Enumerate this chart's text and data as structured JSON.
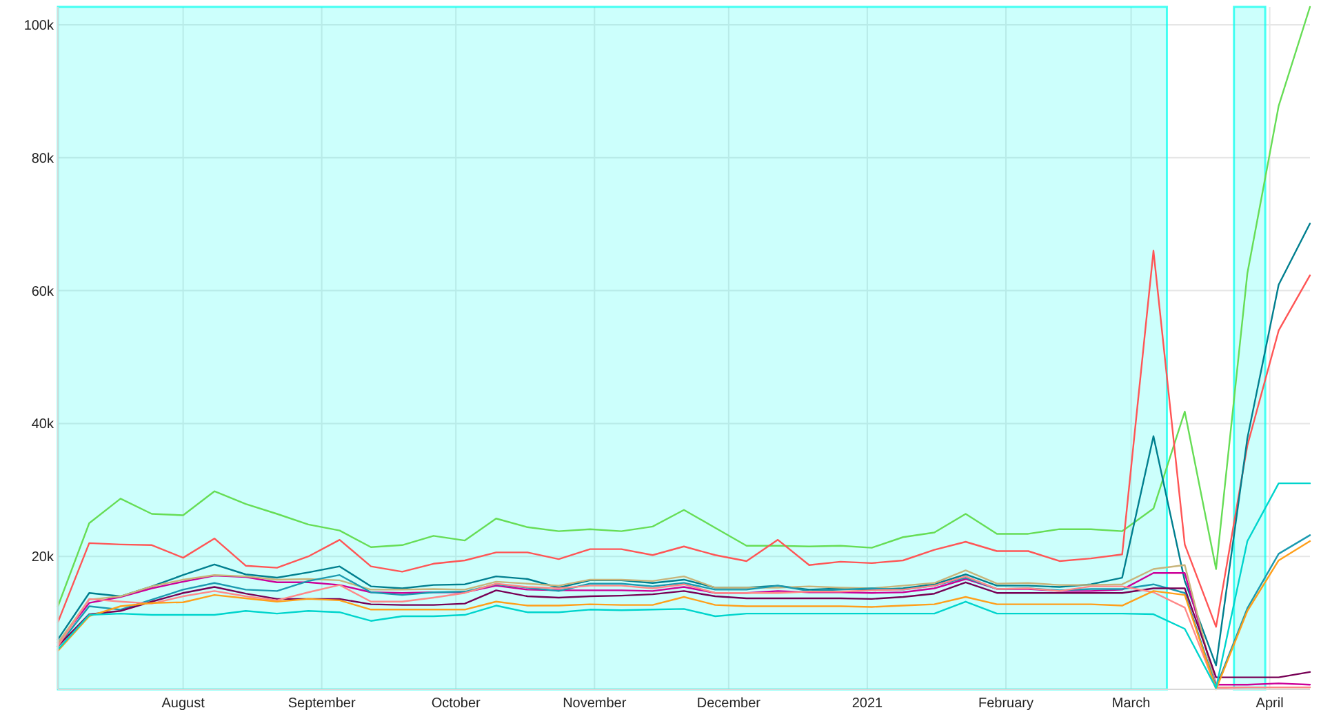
{
  "chart_data": {
    "type": "line",
    "x": [
      "2020-07-04",
      "2020-07-11",
      "2020-07-18",
      "2020-07-25",
      "2020-08-01",
      "2020-08-08",
      "2020-08-15",
      "2020-08-22",
      "2020-08-29",
      "2020-09-05",
      "2020-09-12",
      "2020-09-19",
      "2020-09-26",
      "2020-10-03",
      "2020-10-10",
      "2020-10-17",
      "2020-10-24",
      "2020-10-31",
      "2020-11-07",
      "2020-11-14",
      "2020-11-21",
      "2020-11-28",
      "2020-12-05",
      "2020-12-12",
      "2020-12-19",
      "2020-12-26",
      "2021-01-02",
      "2021-01-09",
      "2021-01-16",
      "2021-01-23",
      "2021-01-30",
      "2021-02-06",
      "2021-02-13",
      "2021-02-20",
      "2021-02-27",
      "2021-03-06",
      "2021-03-13",
      "2021-03-20",
      "2021-03-27",
      "2021-04-03",
      "2021-04-10"
    ],
    "series": [
      {
        "color": "#66dd55",
        "values": [
          12500,
          25000,
          28700,
          26400,
          26200,
          29800,
          27900,
          26400,
          24800,
          23900,
          21400,
          21700,
          23100,
          22400,
          25700,
          24400,
          23800,
          24100,
          23800,
          24500,
          27000,
          24300,
          21600,
          21600,
          21500,
          21600,
          21300,
          22900,
          23600,
          26400,
          23400,
          23400,
          24100,
          24100,
          23800,
          27200,
          41800,
          18100,
          62600,
          87800,
          102700
        ]
      },
      {
        "color": "#ff5555",
        "values": [
          10100,
          22000,
          21800,
          21700,
          19800,
          22700,
          18600,
          18300,
          20000,
          22500,
          18500,
          17700,
          18900,
          19400,
          20600,
          20600,
          19600,
          21100,
          21100,
          20200,
          21500,
          20200,
          19300,
          22500,
          18700,
          19200,
          19000,
          19400,
          21000,
          22200,
          20800,
          20800,
          19300,
          19700,
          20300,
          66000,
          21800,
          9400,
          36700,
          54000,
          62300
        ]
      },
      {
        "color": "#007f8f",
        "values": [
          7500,
          14500,
          14000,
          15500,
          17200,
          18800,
          17300,
          16800,
          17600,
          18500,
          15500,
          15200,
          15700,
          15800,
          17000,
          16600,
          15300,
          16400,
          16400,
          16000,
          16500,
          15300,
          15300,
          15600,
          15000,
          15200,
          15000,
          15200,
          15800,
          17300,
          15600,
          15600,
          15400,
          15800,
          16800,
          38100,
          16300,
          3600,
          37800,
          60900,
          70100
        ]
      },
      {
        "color": "#cc0099",
        "values": [
          7000,
          13000,
          13900,
          15200,
          16200,
          17100,
          16900,
          16100,
          16100,
          15700,
          14600,
          14500,
          14600,
          14600,
          15600,
          15000,
          14900,
          14900,
          14900,
          14800,
          15400,
          14500,
          14500,
          14800,
          14600,
          14600,
          14500,
          14600,
          15200,
          16600,
          15100,
          15100,
          14800,
          14800,
          15000,
          17500,
          17500,
          700,
          700,
          900,
          700
        ]
      },
      {
        "color": "#c8b47a",
        "values": [
          7000,
          13500,
          14000,
          15500,
          16500,
          17200,
          17000,
          16500,
          16600,
          16400,
          15000,
          15000,
          15100,
          15000,
          16200,
          15900,
          15600,
          16500,
          16500,
          16300,
          17000,
          15300,
          15300,
          15300,
          15500,
          15300,
          15200,
          15600,
          16000,
          17900,
          15900,
          16000,
          15700,
          15700,
          15800,
          18100,
          18700,
          300,
          300,
          300,
          300
        ]
      },
      {
        "color": "#1a9ab0",
        "values": [
          6500,
          12500,
          12000,
          13500,
          15000,
          16000,
          15000,
          14800,
          16300,
          17200,
          14600,
          14200,
          14600,
          14700,
          15800,
          15300,
          14800,
          15900,
          15900,
          15500,
          16000,
          15000,
          15000,
          15600,
          14800,
          15000,
          15200,
          15000,
          15600,
          16800,
          15100,
          15200,
          14900,
          15100,
          15100,
          15800,
          14500,
          300,
          12200,
          20400,
          23200
        ]
      },
      {
        "color": "#770055",
        "values": [
          6500,
          11300,
          11800,
          13200,
          14500,
          15400,
          14400,
          13600,
          13600,
          13600,
          12800,
          12700,
          12700,
          12900,
          14900,
          14000,
          13800,
          14000,
          14100,
          14300,
          14800,
          14000,
          13700,
          13700,
          13700,
          13700,
          13600,
          13900,
          14400,
          16100,
          14500,
          14500,
          14500,
          14500,
          14500,
          15200,
          15200,
          1800,
          1800,
          1800,
          2600
        ]
      },
      {
        "color": "#ff8888",
        "values": [
          6500,
          13600,
          13200,
          12900,
          14000,
          14800,
          14000,
          13400,
          14600,
          15700,
          13200,
          13200,
          13800,
          14500,
          15900,
          15400,
          15200,
          15600,
          15600,
          15200,
          15800,
          14500,
          14500,
          14500,
          14700,
          14700,
          14900,
          15000,
          15600,
          17000,
          15100,
          15200,
          14800,
          15500,
          15500,
          14600,
          12300,
          200,
          300,
          300,
          300
        ]
      },
      {
        "color": "#ff9f1a",
        "values": [
          5800,
          11000,
          12500,
          13000,
          13100,
          14200,
          13700,
          13200,
          13600,
          13400,
          12000,
          12000,
          12000,
          12000,
          13200,
          12600,
          12600,
          12800,
          12700,
          12700,
          13900,
          12700,
          12500,
          12500,
          12500,
          12500,
          12400,
          12600,
          12800,
          13900,
          12800,
          12800,
          12800,
          12800,
          12600,
          14800,
          14200,
          0,
          11800,
          19400,
          22300
        ]
      },
      {
        "color": "#00d4cc",
        "values": [
          6000,
          11200,
          11400,
          11200,
          11200,
          11200,
          11800,
          11400,
          11800,
          11600,
          10300,
          11000,
          11000,
          11200,
          12600,
          11600,
          11600,
          12000,
          11900,
          12000,
          12100,
          11000,
          11400,
          11400,
          11400,
          11400,
          11400,
          11400,
          11400,
          13200,
          11400,
          11400,
          11400,
          11400,
          11400,
          11300,
          9100,
          200,
          22300,
          31000,
          31000
        ]
      }
    ],
    "xlim": [
      "2020-07-04",
      "2021-04-10"
    ],
    "xticks": [
      {
        "value": "2020-08-01",
        "label": "August"
      },
      {
        "value": "2020-09-01",
        "label": "September"
      },
      {
        "value": "2020-10-01",
        "label": "October"
      },
      {
        "value": "2020-11-01",
        "label": "November"
      },
      {
        "value": "2020-12-01",
        "label": "December"
      },
      {
        "value": "2021-01-01",
        "label": "2021"
      },
      {
        "value": "2021-02-01",
        "label": "February"
      },
      {
        "value": "2021-03-01",
        "label": "March"
      },
      {
        "value": "2021-04-01",
        "label": "April"
      }
    ],
    "ylim": [
      0,
      102700
    ],
    "yticks": [
      {
        "value": 20000,
        "label": "20k"
      },
      {
        "value": 40000,
        "label": "40k"
      },
      {
        "value": 60000,
        "label": "60k"
      },
      {
        "value": 80000,
        "label": "80k"
      },
      {
        "value": 100000,
        "label": "100k"
      }
    ],
    "bands": [
      {
        "axis": "x",
        "from": "2020-07-04",
        "to": "2021-03-09",
        "color": "#00ffee"
      },
      {
        "axis": "x",
        "from": "2021-03-24",
        "to": "2021-03-31",
        "color": "#00ffee"
      }
    ],
    "grid": true,
    "line_style": "solid"
  }
}
